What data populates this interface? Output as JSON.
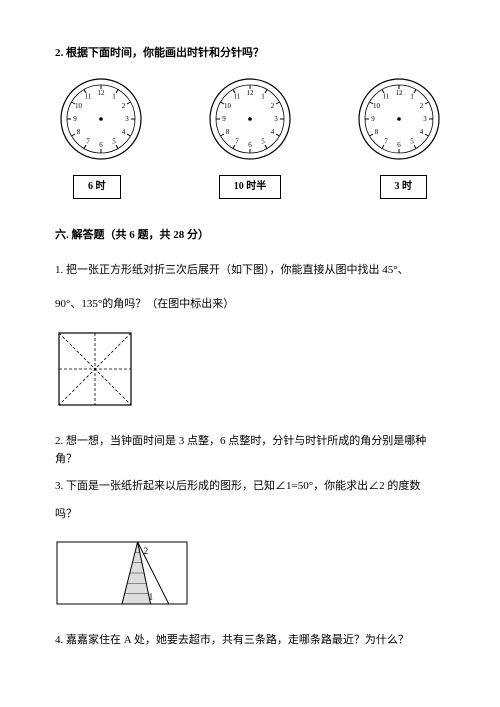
{
  "q2": {
    "title": "2. 根据下面时间，你能画出时针和分针吗？",
    "clocks": [
      {
        "label": "6 时"
      },
      {
        "label": "10 时半"
      },
      {
        "label": "3 时"
      }
    ],
    "clock_style": {
      "outer_r": 40,
      "face_r": 34,
      "tick_outer": 34,
      "tick_inner": 30,
      "num_r": 26,
      "num_fontsize": 7,
      "stroke": "#000",
      "center_dot_r": 1.8
    }
  },
  "section6": {
    "heading": "六. 解答题（共 6 题，共 28 分）",
    "q1_line1": "1. 把一张正方形纸对折三次后展开（如下图），你能直接从图中找出 45°、",
    "q1_line2": "90°、135°的角吗？（在图中标出来）",
    "q1_square": {
      "size": 72,
      "stroke": "#000",
      "stroke_width": 1.2,
      "dash": "3,2"
    },
    "q2_text": "2. 想一想，当钟面时间是 3 点整，6 点整时，分针与时针所成的角分别是哪种角？",
    "q3_line1": "3. 下面是一张纸折起来以后形成的图形，已知∠1=50°，你能求出∠2 的度数",
    "q3_line2": "吗？",
    "q3_fold": {
      "w": 130,
      "h": 62,
      "stroke": "#000",
      "label1": "1",
      "label2": "2"
    },
    "q4_text": "4. 嘉嘉家住在 A 处，她要去超市，共有三条路，走哪条路最近？为什么？"
  }
}
